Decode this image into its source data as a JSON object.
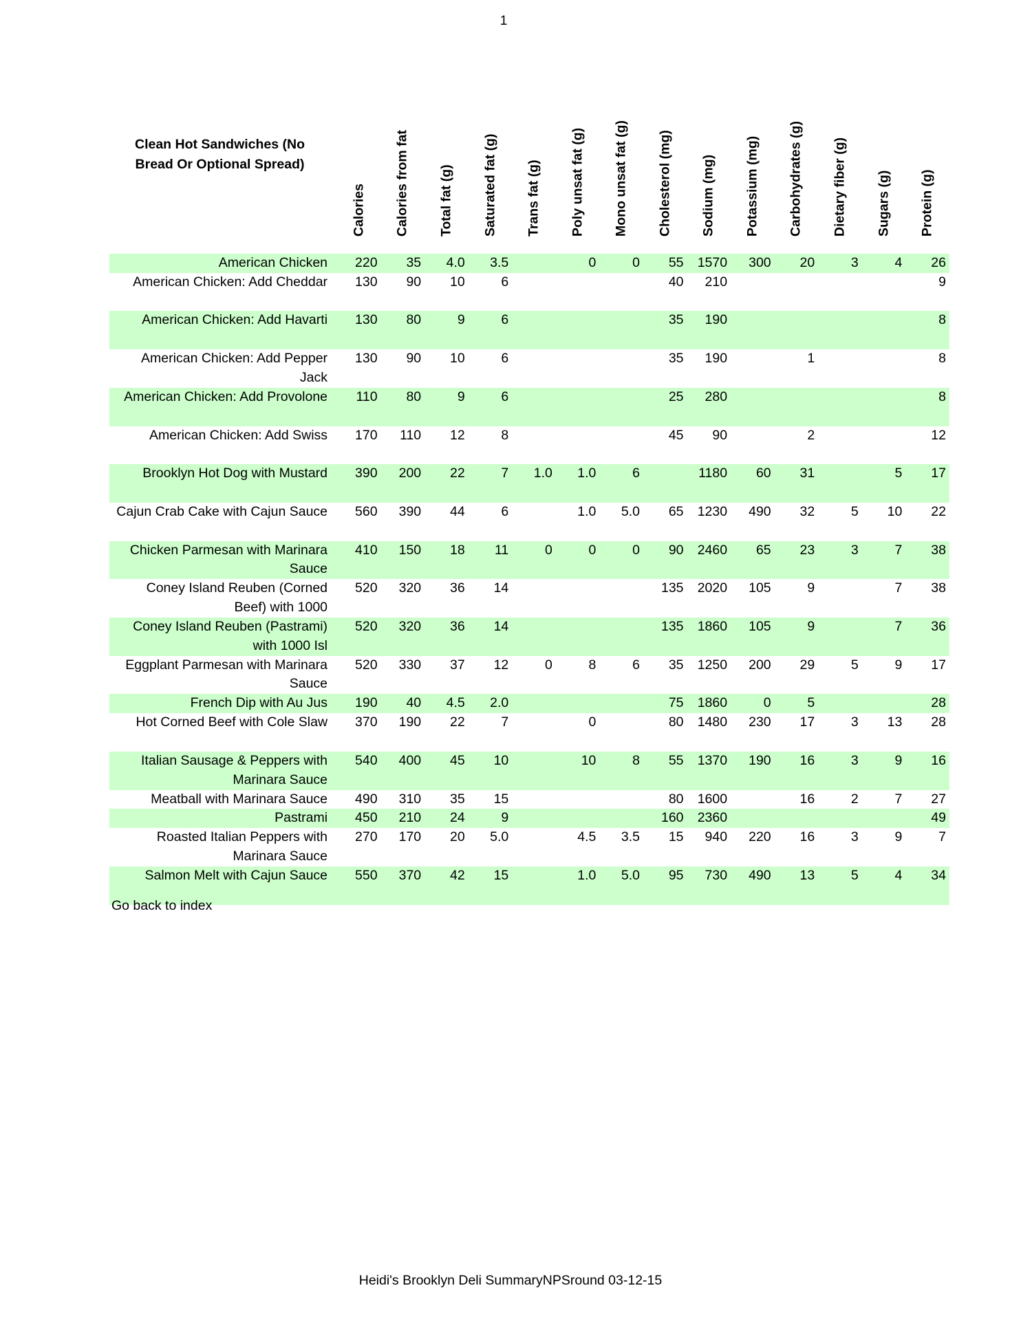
{
  "page_number": "1",
  "table": {
    "title": "Clean Hot Sandwiches (No Bread Or Optional Spread)",
    "columns": [
      "Calories",
      "Calories from fat",
      "Total fat (g)",
      "Saturated fat (g)",
      "Trans fat (g)",
      "Poly unsat fat (g)",
      "Mono unsat fat (g)",
      "Cholesterol (mg)",
      "Sodium (mg)",
      "Potassium (mg)",
      "Carbohydrates (g)",
      "Dietary fiber (g)",
      "Sugars (g)",
      "Protein (g)"
    ],
    "highlight_color": "#ccffcc",
    "rows": [
      {
        "name": "American Chicken",
        "lines": 1,
        "values": [
          "220",
          "35",
          "4.0",
          "3.5",
          "",
          "0",
          "0",
          "55",
          "1570",
          "300",
          "20",
          "3",
          "4",
          "26"
        ]
      },
      {
        "name": "American Chicken: Add Cheddar",
        "lines": 2,
        "values": [
          "130",
          "90",
          "10",
          "6",
          "",
          "",
          "",
          "40",
          "210",
          "",
          "",
          "",
          "",
          "9"
        ]
      },
      {
        "name": "American Chicken: Add Havarti",
        "lines": 2,
        "values": [
          "130",
          "80",
          "9",
          "6",
          "",
          "",
          "",
          "35",
          "190",
          "",
          "",
          "",
          "",
          "8"
        ]
      },
      {
        "name": "American Chicken: Add Pepper Jack",
        "lines": 2,
        "values": [
          "130",
          "90",
          "10",
          "6",
          "",
          "",
          "",
          "35",
          "190",
          "",
          "1",
          "",
          "",
          "8"
        ]
      },
      {
        "name": "American Chicken: Add Provolone",
        "lines": 2,
        "values": [
          "110",
          "80",
          "9",
          "6",
          "",
          "",
          "",
          "25",
          "280",
          "",
          "",
          "",
          "",
          "8"
        ]
      },
      {
        "name": "American Chicken: Add Swiss",
        "lines": 2,
        "values": [
          "170",
          "110",
          "12",
          "8",
          "",
          "",
          "",
          "45",
          "90",
          "",
          "2",
          "",
          "",
          "12"
        ]
      },
      {
        "name": "Brooklyn Hot Dog with Mustard",
        "lines": 2,
        "values": [
          "390",
          "200",
          "22",
          "7",
          "1.0",
          "1.0",
          "6",
          "",
          "1180",
          "60",
          "31",
          "",
          "5",
          "17"
        ]
      },
      {
        "name": "Cajun Crab Cake with Cajun Sauce",
        "lines": 2,
        "values": [
          "560",
          "390",
          "44",
          "6",
          "",
          "1.0",
          "5.0",
          "65",
          "1230",
          "490",
          "32",
          "5",
          "10",
          "22"
        ]
      },
      {
        "name": "Chicken Parmesan with Marinara Sauce",
        "lines": 2,
        "values": [
          "410",
          "150",
          "18",
          "11",
          "0",
          "0",
          "0",
          "90",
          "2460",
          "65",
          "23",
          "3",
          "7",
          "38"
        ]
      },
      {
        "name": "Coney Island Reuben (Corned Beef) with 1000",
        "lines": 2,
        "values": [
          "520",
          "320",
          "36",
          "14",
          "",
          "",
          "",
          "135",
          "2020",
          "105",
          "9",
          "",
          "7",
          "38"
        ]
      },
      {
        "name": "Coney Island Reuben (Pastrami) with 1000 Isl",
        "lines": 2,
        "values": [
          "520",
          "320",
          "36",
          "14",
          "",
          "",
          "",
          "135",
          "1860",
          "105",
          "9",
          "",
          "7",
          "36"
        ]
      },
      {
        "name": "Eggplant Parmesan with Marinara Sauce",
        "lines": 2,
        "values": [
          "520",
          "330",
          "37",
          "12",
          "0",
          "8",
          "6",
          "35",
          "1250",
          "200",
          "29",
          "5",
          "9",
          "17"
        ]
      },
      {
        "name": "French Dip with Au Jus",
        "lines": 1,
        "values": [
          "190",
          "40",
          "4.5",
          "2.0",
          "",
          "",
          "",
          "75",
          "1860",
          "0",
          "5",
          "",
          "",
          "28"
        ]
      },
      {
        "name": "Hot Corned Beef with Cole Slaw",
        "lines": 2,
        "values": [
          "370",
          "190",
          "22",
          "7",
          "",
          "0",
          "",
          "80",
          "1480",
          "230",
          "17",
          "3",
          "13",
          "28"
        ]
      },
      {
        "name": "Italian Sausage & Peppers with Marinara Sauce",
        "lines": 2,
        "values": [
          "540",
          "400",
          "45",
          "10",
          "",
          "10",
          "8",
          "55",
          "1370",
          "190",
          "16",
          "3",
          "9",
          "16"
        ]
      },
      {
        "name": "Meatball with Marinara Sauce",
        "lines": 1,
        "values": [
          "490",
          "310",
          "35",
          "15",
          "",
          "",
          "",
          "80",
          "1600",
          "",
          "16",
          "2",
          "7",
          "27"
        ]
      },
      {
        "name": "Pastrami",
        "lines": 1,
        "values": [
          "450",
          "210",
          "24",
          "9",
          "",
          "",
          "",
          "160",
          "2360",
          "",
          "",
          "",
          "",
          "49"
        ]
      },
      {
        "name": "Roasted Italian Peppers with Marinara Sauce",
        "lines": 2,
        "values": [
          "270",
          "170",
          "20",
          "5.0",
          "",
          "4.5",
          "3.5",
          "15",
          "940",
          "220",
          "16",
          "3",
          "9",
          "7"
        ]
      },
      {
        "name": "Salmon Melt with Cajun Sauce",
        "lines": 2,
        "values": [
          "550",
          "370",
          "42",
          "15",
          "",
          "1.0",
          "5.0",
          "95",
          "730",
          "490",
          "13",
          "5",
          "4",
          "34"
        ]
      }
    ]
  },
  "back_link": "Go back to index",
  "footer": "Heidi's Brooklyn Deli SummaryNPSround 03-12-15"
}
